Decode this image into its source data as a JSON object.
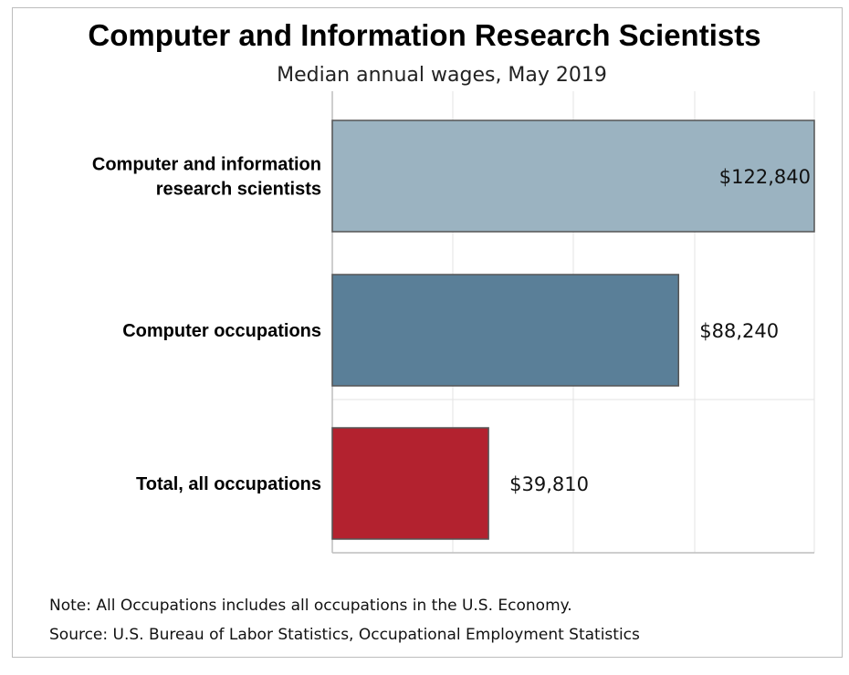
{
  "chart_data": {
    "type": "bar",
    "orientation": "horizontal",
    "title": "Computer and Information Research Scientists",
    "subtitle": "Median annual wages, May 2019",
    "categories": [
      [
        "Computer and information",
        "research scientists"
      ],
      [
        "Computer occupations"
      ],
      [
        "Total, all occupations"
      ]
    ],
    "values": [
      122840,
      88240,
      39810
    ],
    "data_labels": [
      "$122,840",
      "$88,240",
      "$39,810"
    ],
    "bar_colors": [
      "#9bb3c1",
      "#5a7f98",
      "#b3222f"
    ],
    "xlim": [
      0,
      122840
    ],
    "grid": true,
    "legend": "none"
  },
  "footer": {
    "note": "Note: All Occupations includes all occupations in the U.S. Economy.",
    "source": "Source: U.S. Bureau of Labor Statistics, Occupational Employment Statistics"
  }
}
